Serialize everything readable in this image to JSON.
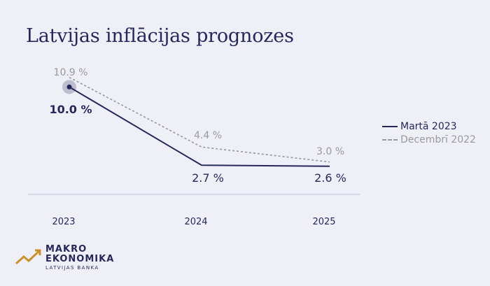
{
  "title": "Latvijas inflācijas prognozes",
  "colors": {
    "background": "#eff0f7",
    "primary": "#26285a",
    "secondary": "#9a9a9a",
    "highlight": "#c5c7e3",
    "logo_accent": "#c8922e"
  },
  "chart_data": {
    "type": "line",
    "categories": [
      "2023",
      "2024",
      "2025"
    ],
    "series": [
      {
        "name": "Martā 2023",
        "values": [
          10.0,
          2.7,
          2.6
        ],
        "labels": [
          "10.0 %",
          "2.7 %",
          "2.6 %"
        ],
        "style": "solid",
        "color": "#26285a"
      },
      {
        "name": "Decembrī 2022",
        "values": [
          10.9,
          4.4,
          3.0
        ],
        "labels": [
          "10.9 %",
          "4.4 %",
          "3.0 %"
        ],
        "style": "dashed",
        "color": "#9a9a9a"
      }
    ],
    "ylim": [
      2.0,
      11.2
    ],
    "grid": false,
    "legend_position": "right"
  },
  "logo": {
    "line1": "MAKRO",
    "line2": "EKONOMIKA",
    "line3": "LATVIJAS BANKA",
    "icon": "rising-line-logo-icon"
  }
}
